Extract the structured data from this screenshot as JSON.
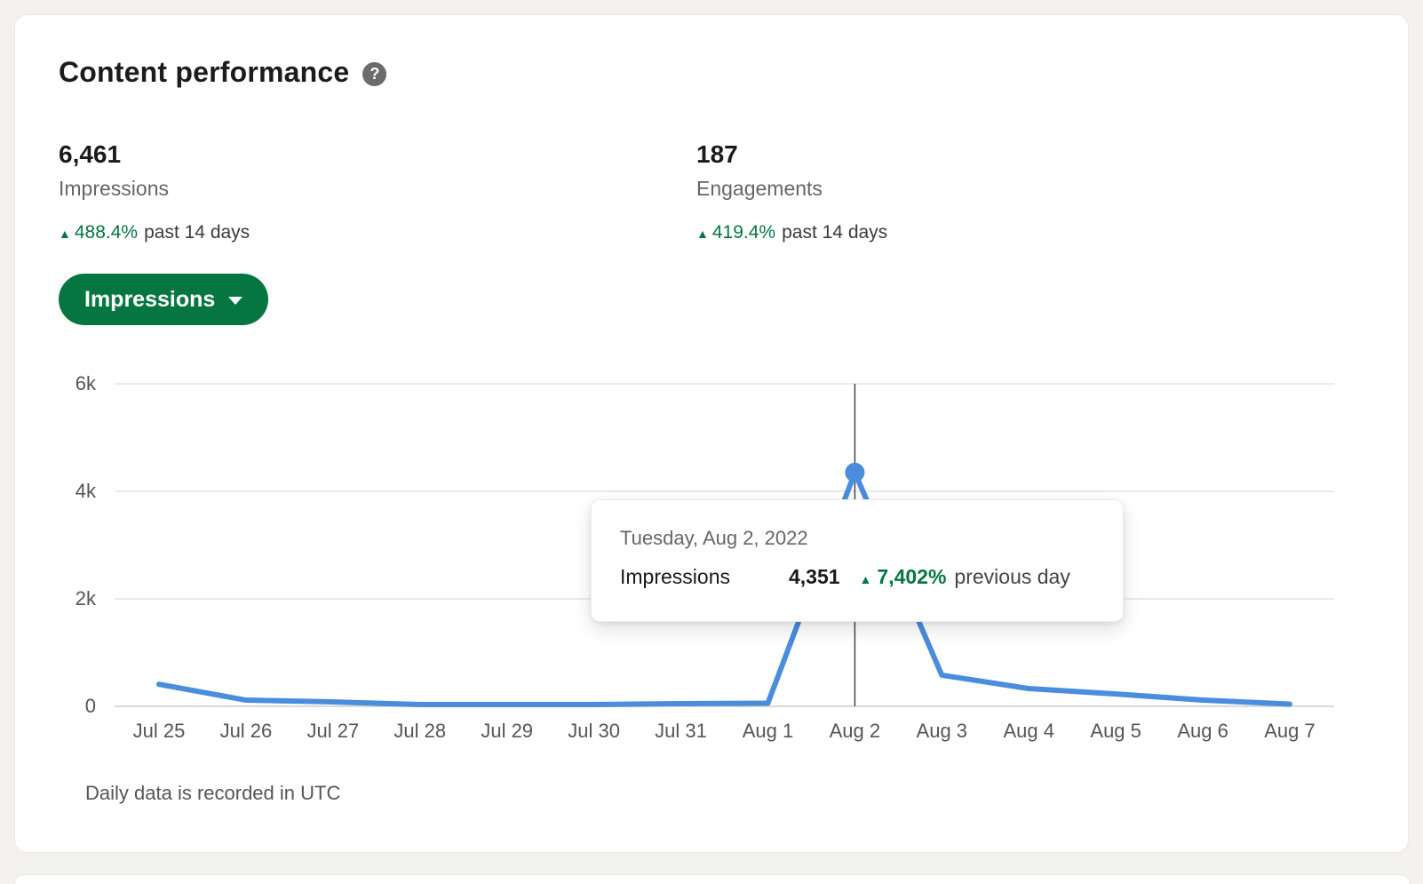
{
  "header": {
    "title": "Content performance"
  },
  "icons": {
    "help": "?",
    "up_arrow": "▲"
  },
  "metrics": [
    {
      "value": "6,461",
      "label": "Impressions",
      "delta": "488.4%",
      "suffix": "past 14 days"
    },
    {
      "value": "187",
      "label": "Engagements",
      "delta": "419.4%",
      "suffix": "past 14 days"
    }
  ],
  "dropdown": {
    "label": "Impressions"
  },
  "tooltip": {
    "date": "Tuesday, Aug 2, 2022",
    "series": "Impressions",
    "value": "4,351",
    "delta": "7,402%",
    "suffix": "previous day"
  },
  "footer": {
    "note": "Daily data is recorded in UTC"
  },
  "colors": {
    "accent_green": "#057642",
    "chart_line": "#4a8ddc",
    "grid": "#e5e3e0",
    "axis_line": "#cfcdc9",
    "crosshair": "#444444"
  },
  "chart_data": {
    "type": "line",
    "categories": [
      "Jul 25",
      "Jul 26",
      "Jul 27",
      "Jul 28",
      "Jul 29",
      "Jul 30",
      "Jul 31",
      "Aug 1",
      "Aug 2",
      "Aug 3",
      "Aug 4",
      "Aug 5",
      "Aug 6",
      "Aug 7"
    ],
    "values": [
      410,
      115,
      82,
      33,
      33,
      33,
      50,
      58,
      4351,
      580,
      330,
      230,
      115,
      41
    ],
    "series_name": "Impressions",
    "ylim": [
      0,
      6000
    ],
    "y_ticks": [
      {
        "label": "0",
        "value": 0
      },
      {
        "label": "2k",
        "value": 2000
      },
      {
        "label": "4k",
        "value": 4000
      },
      {
        "label": "6k",
        "value": 6000
      }
    ],
    "highlight_index": 8,
    "highlight_value": 4351,
    "grid": "horizontal",
    "legend": "none"
  }
}
